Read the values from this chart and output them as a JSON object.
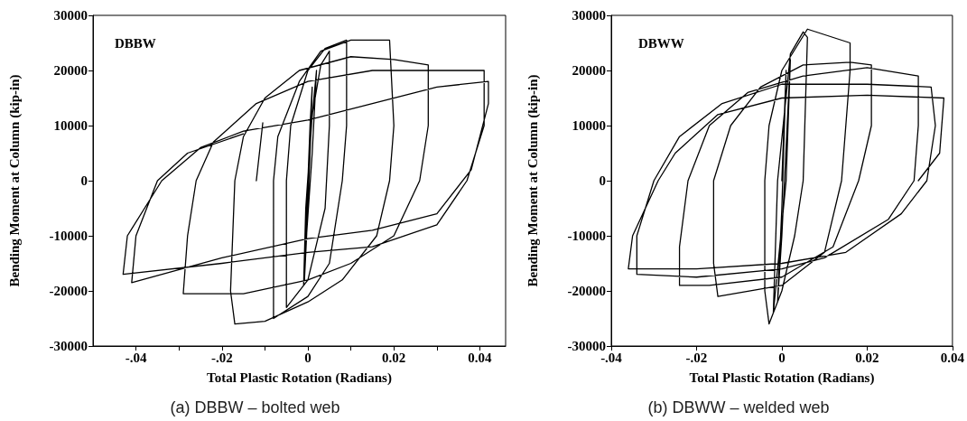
{
  "chart_data": [
    {
      "type": "line",
      "title": "(a) DBBW – bolted web",
      "xlabel": "Total Plastic Rotation (Radians)",
      "ylabel": "Bending Moment at Column (kip-in)",
      "annotations": [
        "DBBW"
      ],
      "grid": false,
      "marker": "none",
      "line_style": "solid",
      "xlim": [
        -0.05,
        0.046
      ],
      "xticks": [
        {
          "value": -0.04,
          "label": "-.04"
        },
        {
          "value": -0.03,
          "label": null
        },
        {
          "value": -0.02,
          "label": "-.02"
        },
        {
          "value": -0.01,
          "label": null
        },
        0,
        {
          "value": 0.01,
          "label": null
        },
        {
          "value": 0.02,
          "label": "0.02"
        },
        {
          "value": 0.03,
          "label": null
        },
        {
          "value": 0.04,
          "label": "0.04"
        }
      ],
      "ylim": [
        -30000,
        30000
      ],
      "yticks": [
        -30000,
        -20000,
        -10000,
        0,
        10000,
        20000,
        30000
      ],
      "series": [
        {
          "color": "#000000",
          "x": [
            0,
            0.0005,
            0.001,
            0.0005,
            -0.0003,
            -0.0008,
            -0.0003,
            0.0008,
            0.002,
            0.001,
            -0.0005,
            -0.001,
            -0.0005,
            0.001,
            0.003,
            0.005,
            0.005,
            0.004,
            0,
            -0.005,
            -0.005,
            -0.005,
            -0.004,
            0,
            0.004,
            0.009,
            0.009,
            0.008,
            0.005,
            0,
            -0.008,
            -0.008,
            -0.007,
            -0.002,
            0.003,
            0.01,
            0.019,
            0.02,
            0.019,
            0.016,
            0.008,
            0,
            -0.01,
            -0.017,
            -0.018,
            -0.017,
            -0.015,
            -0.01,
            -0.002,
            0.01,
            0.02,
            0.028,
            0.028,
            0.026,
            0.02,
            0.01,
            0,
            -0.015,
            -0.029,
            -0.028,
            -0.026,
            -0.022,
            -0.012,
            0,
            0.015,
            0.03,
            0.041,
            0.041,
            0.037,
            0.03,
            0.015,
            0,
            -0.02,
            -0.043,
            -0.042,
            -0.034,
            -0.025,
            -0.015,
            0,
            0.015,
            0.03,
            0.042,
            0.042,
            0.038,
            0.03,
            0.015,
            0,
            -0.02,
            -0.041,
            -0.04,
            -0.035,
            -0.028,
            -0.015,
            null,
            -0.012,
            -0.0105
          ],
          "values": [
            0,
            10000,
            17000,
            5000,
            -10000,
            -18000,
            -5000,
            10000,
            20000,
            5000,
            -12000,
            -19000,
            -5000,
            12000,
            21000,
            23500,
            10000,
            -5000,
            -18000,
            -23000,
            -5000,
            0,
            10000,
            20000,
            24000,
            25500,
            10000,
            0,
            -15000,
            -21000,
            -25000,
            0,
            8000,
            18000,
            23500,
            25500,
            25500,
            10000,
            0,
            -10000,
            -18000,
            -22000,
            -25500,
            -26000,
            -20000,
            0,
            8000,
            15000,
            20000,
            22500,
            22000,
            21000,
            10000,
            0,
            -10000,
            -15000,
            -18000,
            -20500,
            -20500,
            -10000,
            0,
            7000,
            14000,
            18000,
            20000,
            20000,
            20000,
            10000,
            0,
            -8000,
            -12000,
            -13000,
            -15000,
            -17000,
            -10000,
            0,
            6000,
            9000,
            11000,
            14000,
            17000,
            18000,
            14000,
            2000,
            -6000,
            -9000,
            -10500,
            -14000,
            -18500,
            -10000,
            0,
            5000,
            8500,
            null,
            0,
            10500
          ]
        }
      ]
    },
    {
      "type": "line",
      "title": "(b) DBWW – welded web",
      "xlabel": "Total Plastic Rotation (Radians)",
      "ylabel": "Bending Moment at Column (kip-in)",
      "annotations": [
        "DBWW"
      ],
      "grid": false,
      "marker": "none",
      "line_style": "solid",
      "xlim": [
        -0.04,
        0.04
      ],
      "xticks": [
        {
          "value": -0.04,
          "label": "-.04"
        },
        {
          "value": -0.02,
          "label": "-.02"
        },
        0,
        {
          "value": 0.02,
          "label": "0.02"
        },
        {
          "value": 0.04,
          "label": "0.04"
        }
      ],
      "ylim": [
        -30000,
        30000
      ],
      "yticks": [
        -30000,
        -20000,
        -10000,
        0,
        10000,
        20000,
        30000
      ],
      "series": [
        {
          "color": "#000000",
          "x": [
            0,
            0.001,
            0,
            -0.001,
            0,
            0.002,
            0.001,
            -0.002,
            -0.001,
            0.002,
            0.005,
            0.006,
            0.005,
            0.003,
            0,
            -0.003,
            -0.004,
            -0.004,
            -0.003,
            0,
            0.006,
            0.016,
            0.016,
            0.014,
            0.01,
            0,
            -0.015,
            -0.016,
            -0.016,
            -0.012,
            -0.005,
            0.005,
            0.016,
            0.021,
            0.021,
            0.018,
            0.012,
            0,
            -0.017,
            -0.024,
            -0.024,
            -0.022,
            -0.017,
            -0.008,
            0.005,
            0.02,
            0.032,
            0.032,
            0.031,
            0.025,
            0.01,
            0,
            -0.02,
            -0.034,
            -0.034,
            -0.03,
            -0.024,
            -0.014,
            0,
            0.02,
            0.035,
            0.036,
            0.034,
            0.028,
            0.015,
            0,
            -0.02,
            -0.036,
            -0.035,
            -0.029,
            -0.025,
            -0.015,
            0,
            0.02,
            0.038,
            0.037,
            0.032
          ],
          "values": [
            0,
            20000,
            -5000,
            -22000,
            -10000,
            22000,
            0,
            -24000,
            0,
            23000,
            27000,
            26000,
            0,
            -10000,
            -20000,
            -26000,
            -20000,
            0,
            10000,
            20000,
            27500,
            25000,
            20000,
            0,
            -13000,
            -19000,
            -21000,
            -15000,
            0,
            10000,
            17000,
            21000,
            21500,
            21000,
            10000,
            0,
            -12000,
            -17500,
            -19000,
            -19000,
            -12000,
            0,
            10000,
            16000,
            19000,
            20500,
            19000,
            10000,
            0,
            -7000,
            -14000,
            -16000,
            -17500,
            -17000,
            -10000,
            0,
            8000,
            14000,
            17500,
            17500,
            17000,
            10000,
            0,
            -6000,
            -13000,
            -15000,
            -16000,
            -16000,
            -10000,
            0,
            5000,
            12000,
            15000,
            15500,
            15000,
            5000,
            0
          ]
        }
      ]
    }
  ]
}
